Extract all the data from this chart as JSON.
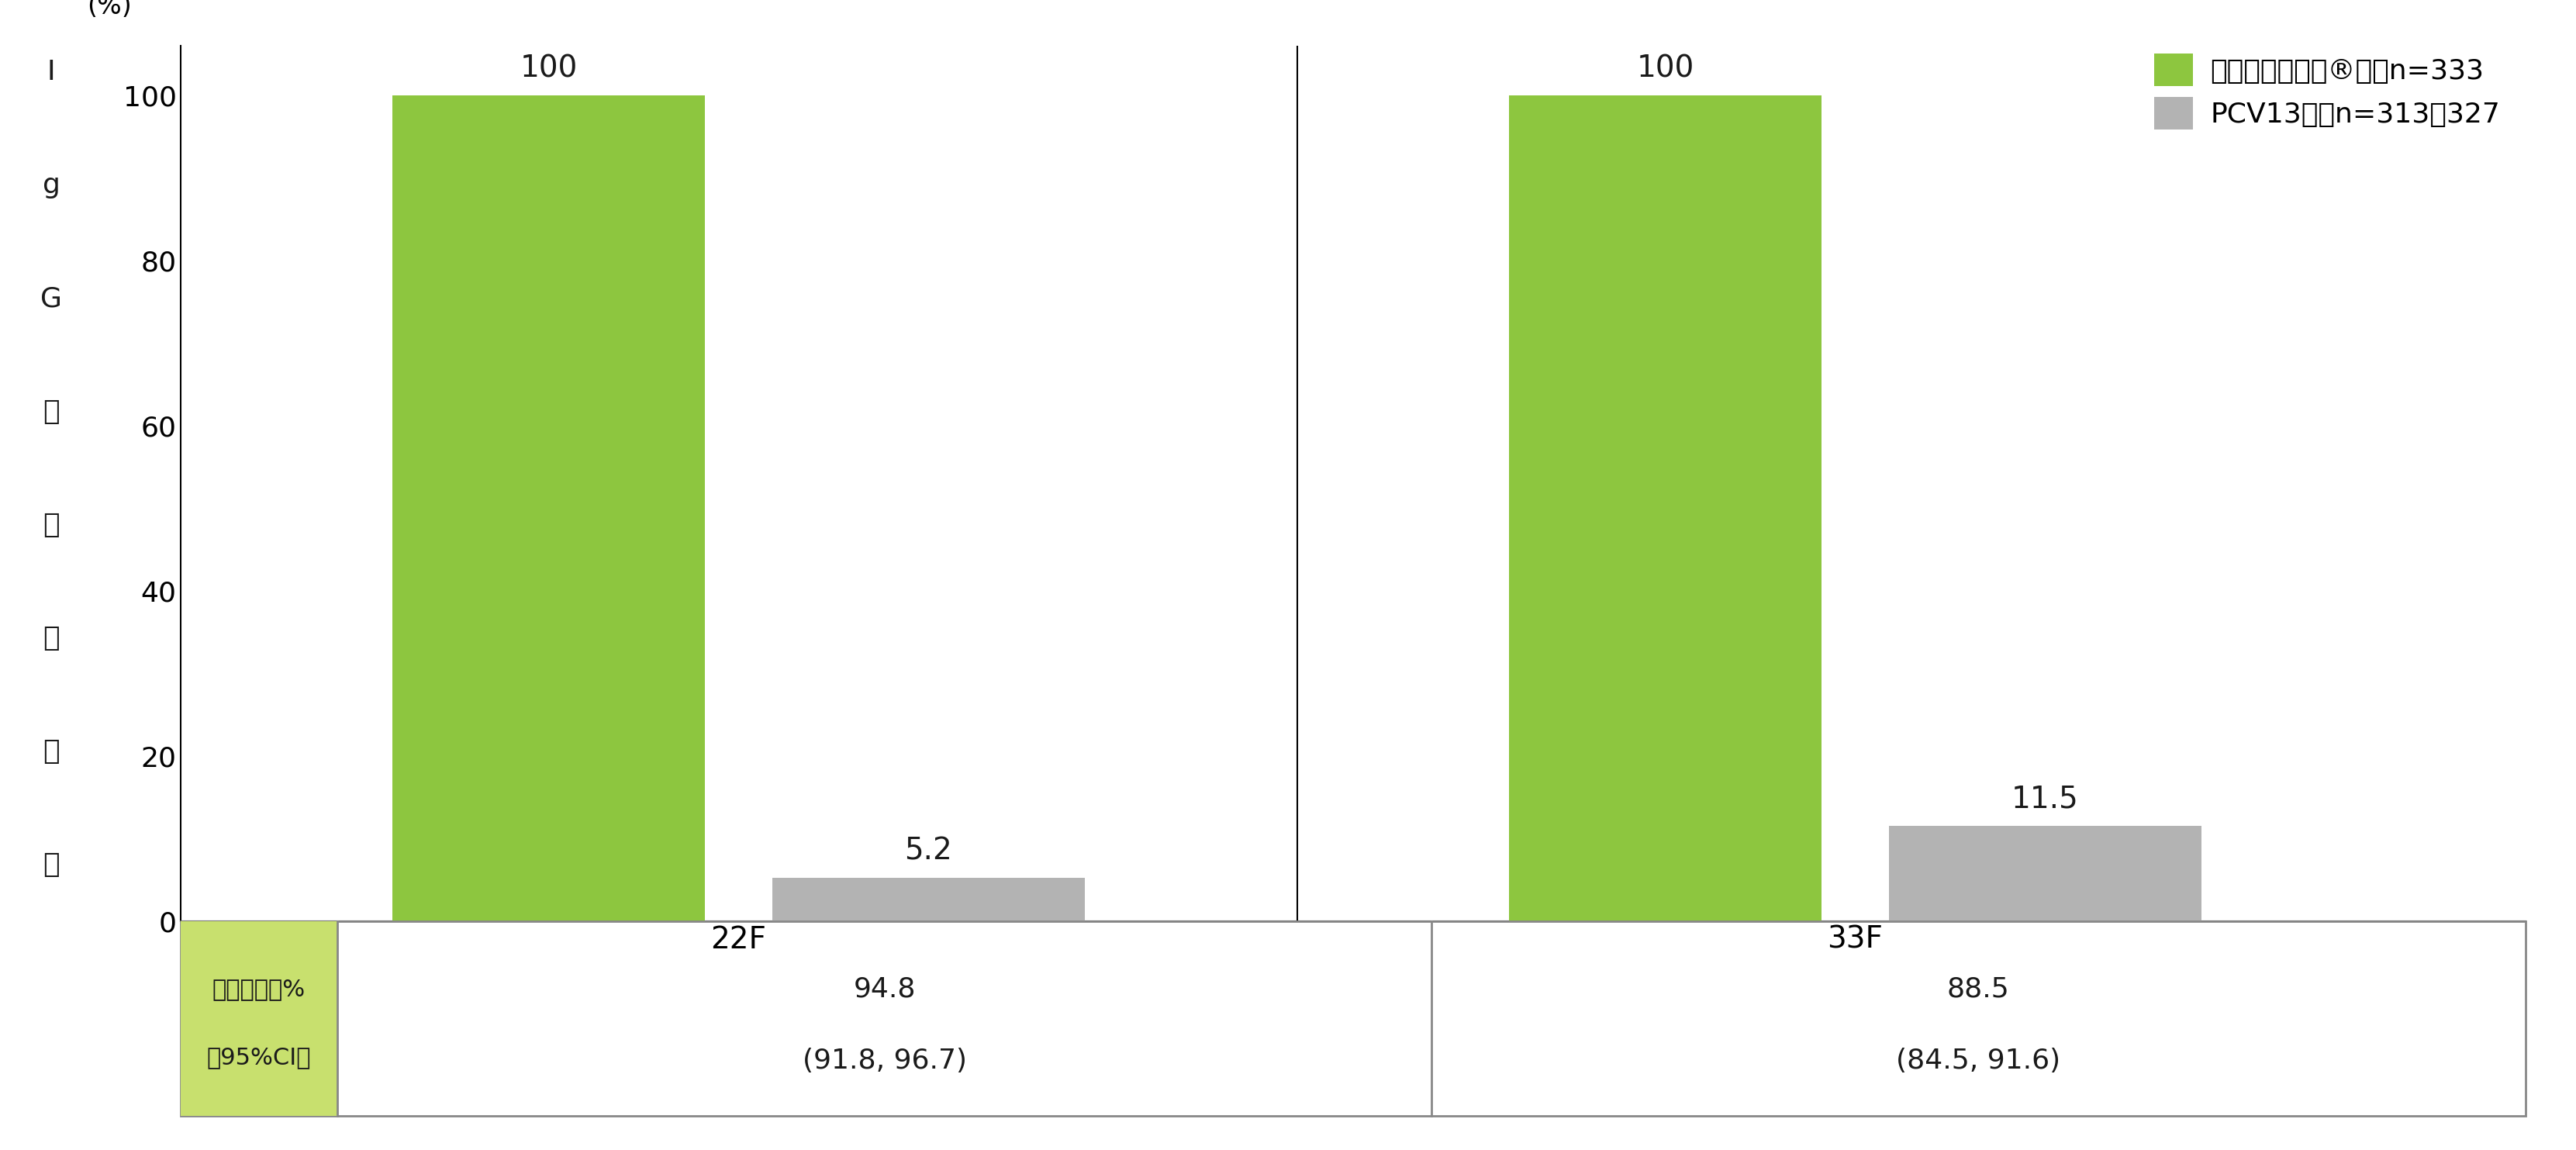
{
  "categories": [
    "22F",
    "33F"
  ],
  "vaccine_values": [
    100,
    100
  ],
  "pcv13_values": [
    5.2,
    11.5
  ],
  "vaccine_color": "#8dc63f",
  "pcv13_color": "#b3b3b3",
  "ylabel_chars": [
    "I",
    "g",
    "G",
    "抗",
    "体",
    "保",
    "有",
    "率"
  ],
  "yunit": "(%)",
  "ylim": [
    0,
    100
  ],
  "yticks": [
    0,
    20,
    40,
    60,
    80,
    100
  ],
  "legend_vaccine": "バクニュバンス®群：n=333",
  "legend_pcv13": "PCV13群：n=313〜327",
  "table_label_line1": "保有率の差%",
  "table_label_line2": "（95%CI）",
  "table_value1_line1": "94.8",
  "table_value1_line2": "(91.8, 96.7)",
  "table_value2_line1": "88.5",
  "table_value2_line2": "(84.5, 91.6)",
  "bar_width": 0.28,
  "group_positions": [
    1.0,
    2.0
  ],
  "background_color": "#ffffff",
  "table_header_color": "#c8e06e",
  "table_border_color": "#888888",
  "bar_label_fontsize": 28,
  "tick_fontsize": 26,
  "legend_fontsize": 26,
  "ylabel_fontsize": 26,
  "yunit_fontsize": 24,
  "table_fontsize": 24
}
